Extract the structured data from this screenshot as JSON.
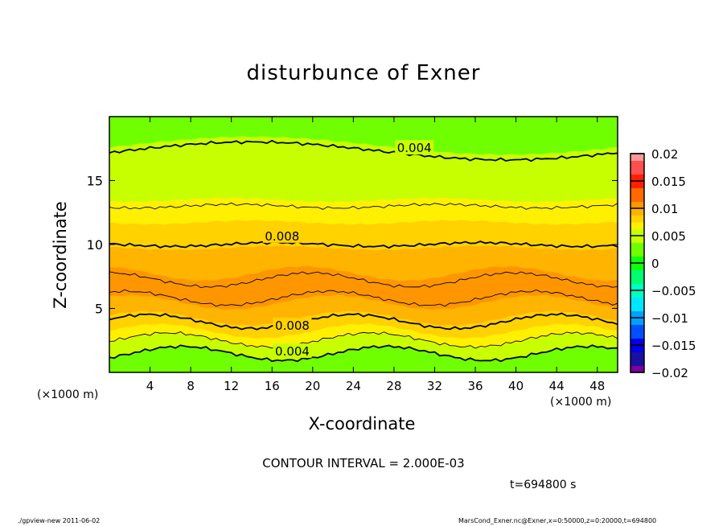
{
  "chart_data": {
    "type": "heatmap",
    "title": "disturbunce of Exner",
    "xlabel": "X-coordinate",
    "ylabel": "Z-coordinate",
    "x_unit_label": "(×1000 m)",
    "xlim": [
      0,
      50
    ],
    "ylim": [
      0,
      20
    ],
    "x_ticks": [
      4,
      8,
      12,
      16,
      20,
      24,
      28,
      32,
      36,
      40,
      44,
      48
    ],
    "y_ticks": [
      5,
      10,
      15
    ],
    "z_profile": {
      "z": [
        0,
        1,
        2,
        3,
        4,
        5,
        6.5,
        8,
        10,
        11,
        13,
        15,
        17,
        18,
        20
      ],
      "value": [
        0.001,
        0.003,
        0.005,
        0.0068,
        0.008,
        0.0094,
        0.0105,
        0.0095,
        0.008,
        0.0075,
        0.006,
        0.005,
        0.0042,
        0.0036,
        0.003
      ]
    },
    "contour_levels": [
      0.004,
      0.006,
      0.008,
      0.01
    ],
    "contour_labels": [
      {
        "text": "0.004",
        "x": 30,
        "z": 17.6
      },
      {
        "text": "0.008",
        "x": 17,
        "z": 10.7
      },
      {
        "text": "0.008",
        "x": 18,
        "z": 3.7
      },
      {
        "text": "0.004",
        "x": 18,
        "z": 1.7
      }
    ],
    "colorbar": {
      "range": [
        -0.02,
        0.02
      ],
      "tick_labels": [
        "0.02",
        "0.015",
        "0.01",
        "0.005",
        "0",
        "-0.005",
        "-0.01",
        "-0.015",
        "-0.02"
      ],
      "stops": [
        [
          -0.02,
          "#7a00a0"
        ],
        [
          -0.0175,
          "#1a10a0"
        ],
        [
          -0.015,
          "#0000e6"
        ],
        [
          -0.0125,
          "#0050ff"
        ],
        [
          -0.01,
          "#00a0ff"
        ],
        [
          -0.0075,
          "#00e6ff"
        ],
        [
          -0.005,
          "#00ffc0"
        ],
        [
          -0.0025,
          "#00ff70"
        ],
        [
          0,
          "#10ff10"
        ],
        [
          0.0025,
          "#70ff00"
        ],
        [
          0.005,
          "#c8ff00"
        ],
        [
          0.0065,
          "#fff000"
        ],
        [
          0.0075,
          "#ffd200"
        ],
        [
          0.009,
          "#ffb400"
        ],
        [
          0.0105,
          "#ff9600"
        ],
        [
          0.0125,
          "#ff6a00"
        ],
        [
          0.015,
          "#ff2000"
        ],
        [
          0.0175,
          "#ff5050"
        ],
        [
          0.02,
          "#ff9999"
        ]
      ]
    },
    "contour_interval_text": "CONTOUR INTERVAL = 2.000E-03",
    "time_text": "t=694800 s"
  },
  "footer": {
    "left": "./gpview-new   2011-06-02",
    "right": "MarsCond_Exner.nc@Exner,x=0:50000,z=0:20000,t=694800"
  }
}
